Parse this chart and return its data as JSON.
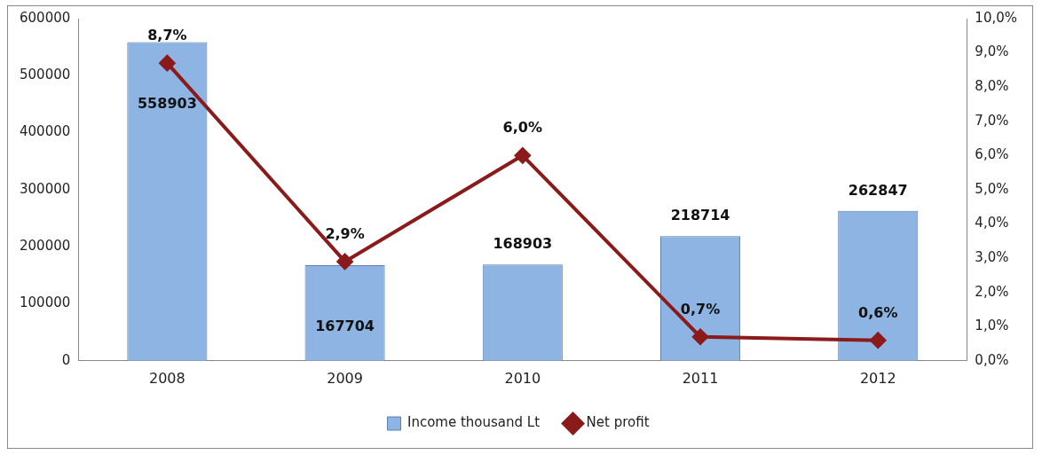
{
  "chart_data": {
    "type": "bar",
    "categories": [
      "2008",
      "2009",
      "2010",
      "2011",
      "2012"
    ],
    "series": [
      {
        "name": "Income thousand Lt",
        "color": "#8db4e2",
        "values": [
          558903,
          167704,
          168903,
          218714,
          262847
        ],
        "value_labels": [
          "558903",
          "167704",
          "168903",
          "218714",
          "262847"
        ]
      },
      {
        "name": "Net profit",
        "type": "line",
        "axis": "y2",
        "color": "#8b1a1a",
        "marker": "diamond",
        "values": [
          8.7,
          2.9,
          6.0,
          0.7,
          0.6
        ],
        "value_labels": [
          "8,7%",
          "2,9%",
          "6,0%",
          "0,7%",
          "0,6%"
        ]
      }
    ],
    "ylim": [
      0,
      600000
    ],
    "yticks": [
      0,
      100000,
      200000,
      300000,
      400000,
      500000,
      600000
    ],
    "y2lim": [
      0,
      10
    ],
    "y2ticks": [
      {
        "value": 0,
        "label": "0,0%"
      },
      {
        "value": 1,
        "label": "1,0%"
      },
      {
        "value": 2,
        "label": "2,0%"
      },
      {
        "value": 3,
        "label": "3,0%"
      },
      {
        "value": 4,
        "label": "4,0%"
      },
      {
        "value": 5,
        "label": "5,0%"
      },
      {
        "value": 6,
        "label": "6,0%"
      },
      {
        "value": 7,
        "label": "7,0%"
      },
      {
        "value": 8,
        "label": "8,0%"
      },
      {
        "value": 9,
        "label": "9,0%"
      },
      {
        "value": 10,
        "label": "10,0%"
      }
    ],
    "legend": "bottom",
    "grid": false
  }
}
